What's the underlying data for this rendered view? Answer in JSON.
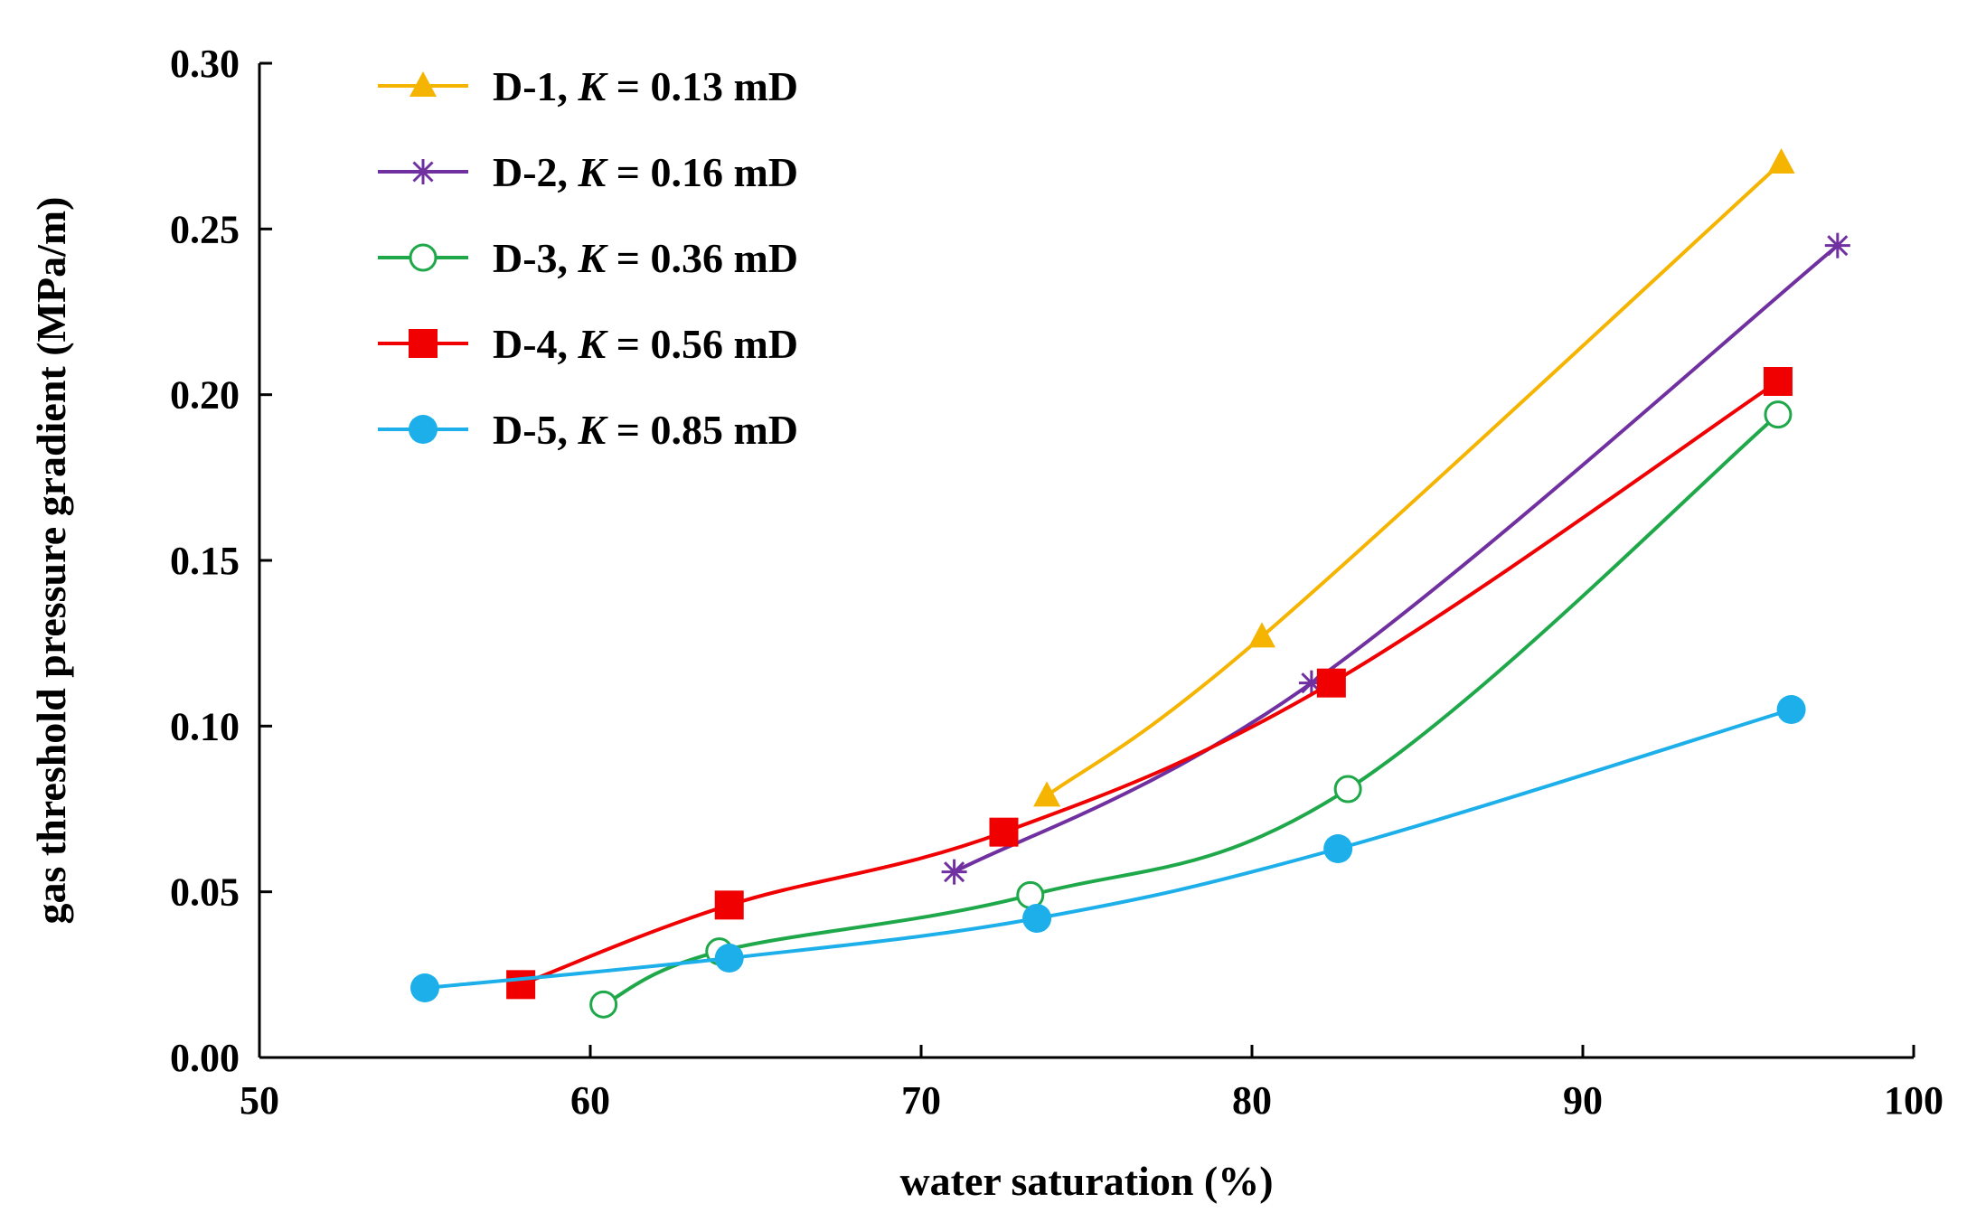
{
  "chart_data": {
    "type": "line",
    "title": "",
    "xlabel": "water saturation (%)",
    "ylabel": "gas threshold pressure gradient (MPa/m)",
    "xlim": [
      50,
      100
    ],
    "ylim": [
      0,
      0.3
    ],
    "x_ticks": [
      "50",
      "60",
      "70",
      "80",
      "90",
      "100"
    ],
    "y_ticks": [
      "0.00",
      "0.05",
      "0.10",
      "0.15",
      "0.20",
      "0.25",
      "0.30"
    ],
    "legend_position": "top-left",
    "series": [
      {
        "id": "D-1",
        "name": "D-1",
        "k_label": "K",
        "k_value": " = 0.13 mD",
        "color": "#F5B400",
        "marker": "triangle",
        "points": [
          [
            73.8,
            0.079
          ],
          [
            80.3,
            0.127
          ],
          [
            96.0,
            0.27
          ]
        ]
      },
      {
        "id": "D-2",
        "name": "D-2",
        "k_label": "K",
        "k_value": " = 0.16 mD",
        "color": "#7030A0",
        "marker": "star",
        "points": [
          [
            71.0,
            0.056
          ],
          [
            81.8,
            0.113
          ],
          [
            97.7,
            0.245
          ]
        ]
      },
      {
        "id": "D-3",
        "name": "D-3",
        "k_label": "K",
        "k_value": " = 0.36 mD",
        "color": "#1FA84A",
        "marker": "circle-open",
        "points": [
          [
            60.4,
            0.016
          ],
          [
            63.9,
            0.032
          ],
          [
            73.3,
            0.049
          ],
          [
            82.9,
            0.081
          ],
          [
            95.9,
            0.194
          ]
        ]
      },
      {
        "id": "D-4",
        "name": "D-4",
        "k_label": "K",
        "k_value": " = 0.56 mD",
        "color": "#F00000",
        "marker": "square",
        "points": [
          [
            57.9,
            0.022
          ],
          [
            64.2,
            0.046
          ],
          [
            72.5,
            0.068
          ],
          [
            82.4,
            0.113
          ],
          [
            95.9,
            0.204
          ]
        ]
      },
      {
        "id": "D-5",
        "name": "D-5",
        "k_label": "K",
        "k_value": " = 0.85 mD",
        "color": "#1CAFEA",
        "marker": "circle-filled",
        "points": [
          [
            55.0,
            0.021
          ],
          [
            64.2,
            0.03
          ],
          [
            73.5,
            0.042
          ],
          [
            82.6,
            0.063
          ],
          [
            96.3,
            0.105
          ]
        ]
      }
    ]
  }
}
